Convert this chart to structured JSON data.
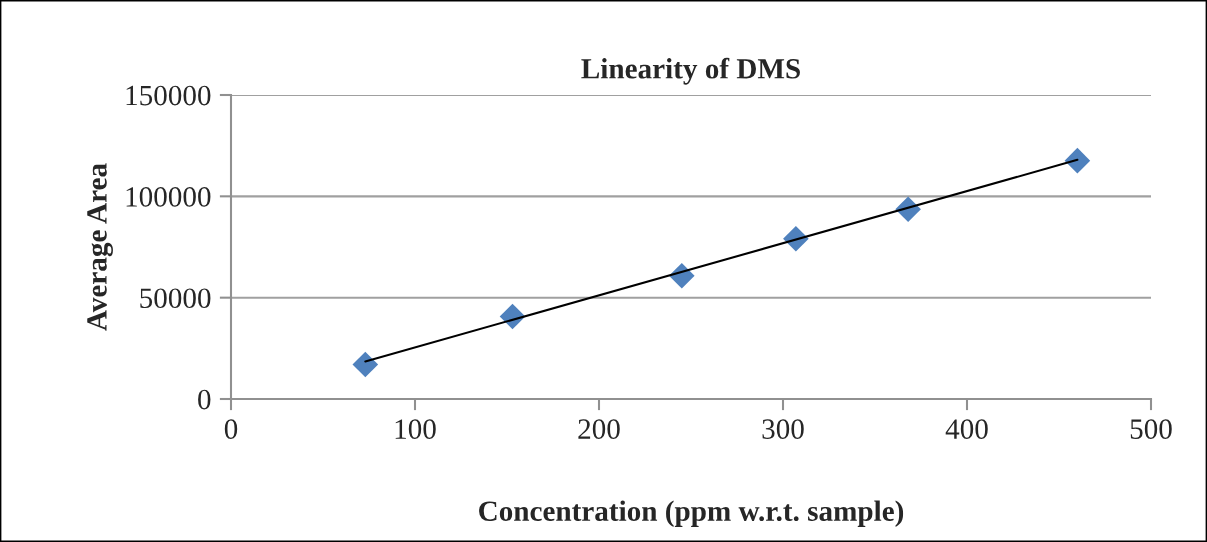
{
  "chart_data": {
    "type": "scatter",
    "title": "Linearity of DMS",
    "xlabel": "Concentration (ppm w.r.t. sample)",
    "ylabel": "Average Area",
    "series": [
      {
        "color": "#4f81bd",
        "x": [
          73,
          153,
          245,
          307,
          368,
          460
        ],
        "values": [
          17000,
          40700,
          60800,
          79100,
          93600,
          117600
        ],
        "marker": "diamond"
      },
      {
        "type": "line",
        "color": "#000000",
        "x": [
          73,
          460
        ],
        "values": [
          18500,
          118000
        ],
        "marker": "none",
        "line_style": "solid"
      }
    ],
    "xlim": [
      0,
      500
    ],
    "xticks": [
      0,
      100,
      200,
      300,
      400,
      500
    ],
    "ylim": [
      0,
      150000
    ],
    "yticks": [
      0,
      50000,
      100000,
      150000
    ],
    "grid": "y",
    "legend": false
  }
}
